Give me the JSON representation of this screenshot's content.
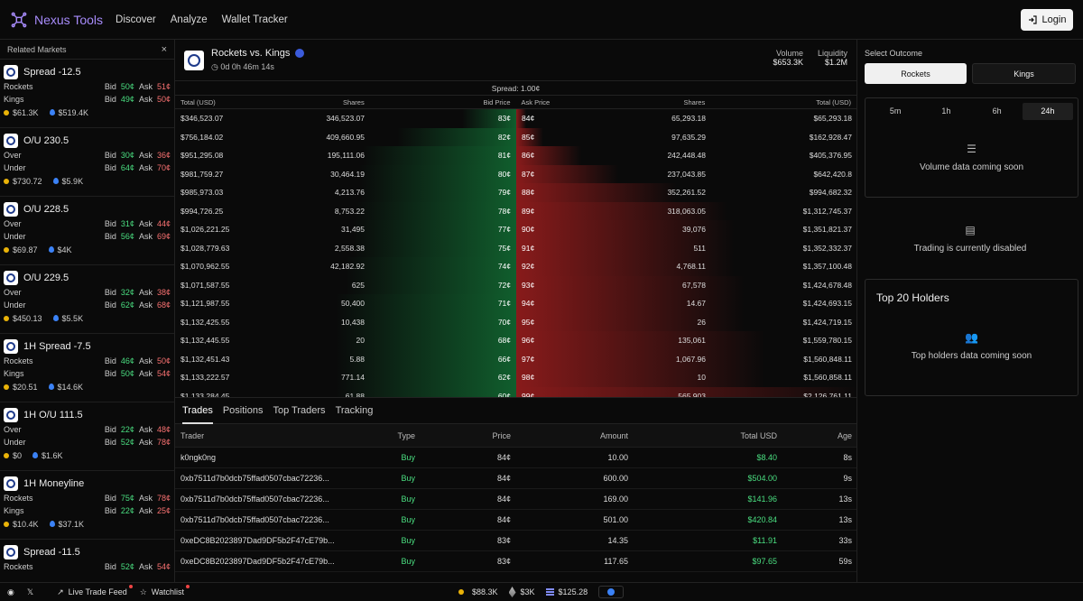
{
  "app": {
    "name": "Nexus Tools",
    "accent": "#a78bfa"
  },
  "nav": {
    "discover": "Discover",
    "analyze": "Analyze",
    "wallet": "Wallet Tracker",
    "login": "Login"
  },
  "related": {
    "title": "Related Markets",
    "markets": [
      {
        "title": "Spread -12.5",
        "a": "Rockets",
        "a_bid": "50¢",
        "a_ask": "51¢",
        "b": "Kings",
        "b_bid": "49¢",
        "b_ask": "50¢",
        "vol": "$61.3K",
        "liq": "$519.4K"
      },
      {
        "title": "O/U 230.5",
        "a": "Over",
        "a_bid": "30¢",
        "a_ask": "36¢",
        "b": "Under",
        "b_bid": "64¢",
        "b_ask": "70¢",
        "vol": "$730.72",
        "liq": "$5.9K"
      },
      {
        "title": "O/U 228.5",
        "a": "Over",
        "a_bid": "31¢",
        "a_ask": "44¢",
        "b": "Under",
        "b_bid": "56¢",
        "b_ask": "69¢",
        "vol": "$69.87",
        "liq": "$4K"
      },
      {
        "title": "O/U 229.5",
        "a": "Over",
        "a_bid": "32¢",
        "a_ask": "38¢",
        "b": "Under",
        "b_bid": "62¢",
        "b_ask": "68¢",
        "vol": "$450.13",
        "liq": "$5.5K"
      },
      {
        "title": "1H Spread -7.5",
        "a": "Rockets",
        "a_bid": "46¢",
        "a_ask": "50¢",
        "b": "Kings",
        "b_bid": "50¢",
        "b_ask": "54¢",
        "vol": "$20.51",
        "liq": "$14.6K"
      },
      {
        "title": "1H O/U 111.5",
        "a": "Over",
        "a_bid": "22¢",
        "a_ask": "48¢",
        "b": "Under",
        "b_bid": "52¢",
        "b_ask": "78¢",
        "vol": "$0",
        "liq": "$1.6K"
      },
      {
        "title": "1H Moneyline",
        "a": "Rockets",
        "a_bid": "75¢",
        "a_ask": "78¢",
        "b": "Kings",
        "b_bid": "22¢",
        "b_ask": "25¢",
        "vol": "$10.4K",
        "liq": "$37.1K"
      },
      {
        "title": "Spread -11.5",
        "a": "Rockets",
        "a_bid": "52¢",
        "a_ask": "54¢",
        "b": "",
        "b_bid": "",
        "b_ask": "",
        "vol": "",
        "liq": ""
      }
    ]
  },
  "event": {
    "title": "Rockets vs. Kings",
    "timer": "0d 0h 46m 14s",
    "volume_label": "Volume",
    "volume": "$653.3K",
    "liquidity_label": "Liquidity",
    "liquidity": "$1.2M"
  },
  "orderbook": {
    "spread": "Spread: 1.00¢",
    "headers": {
      "total": "Total (USD)",
      "shares": "Shares",
      "bid": "Bid Price",
      "ask": "Ask Price",
      "shares2": "Shares",
      "total2": "Total (USD)"
    },
    "rows": [
      {
        "bt": "$346,523.07",
        "bs": "346,523.07",
        "bp": "83¢",
        "ap": "84¢",
        "as": "65,293.18",
        "at": "$65,293.18",
        "bd": 0.16,
        "ad": 0.03
      },
      {
        "bt": "$756,184.02",
        "bs": "409,660.95",
        "bp": "82¢",
        "ap": "85¢",
        "as": "97,635.29",
        "at": "$162,928.47",
        "bd": 0.35,
        "ad": 0.08
      },
      {
        "bt": "$951,295.08",
        "bs": "195,111.06",
        "bp": "81¢",
        "ap": "86¢",
        "as": "242,448.48",
        "at": "$405,376.95",
        "bd": 0.45,
        "ad": 0.19
      },
      {
        "bt": "$981,759.27",
        "bs": "30,464.19",
        "bp": "80¢",
        "ap": "87¢",
        "as": "237,043.85",
        "at": "$642,420.8",
        "bd": 0.46,
        "ad": 0.3
      },
      {
        "bt": "$985,973.03",
        "bs": "4,213.76",
        "bp": "79¢",
        "ap": "88¢",
        "as": "352,261.52",
        "at": "$994,682.32",
        "bd": 0.46,
        "ad": 0.47
      },
      {
        "bt": "$994,726.25",
        "bs": "8,753.22",
        "bp": "78¢",
        "ap": "89¢",
        "as": "318,063.05",
        "at": "$1,312,745.37",
        "bd": 0.47,
        "ad": 0.62
      },
      {
        "bt": "$1,026,221.25",
        "bs": "31,495",
        "bp": "77¢",
        "ap": "90¢",
        "as": "39,076",
        "at": "$1,351,821.37",
        "bd": 0.48,
        "ad": 0.64
      },
      {
        "bt": "$1,028,779.63",
        "bs": "2,558.38",
        "bp": "75¢",
        "ap": "91¢",
        "as": "511",
        "at": "$1,352,332.37",
        "bd": 0.48,
        "ad": 0.64
      },
      {
        "bt": "$1,070,962.55",
        "bs": "42,182.92",
        "bp": "74¢",
        "ap": "92¢",
        "as": "4,768.11",
        "at": "$1,357,100.48",
        "bd": 0.5,
        "ad": 0.64
      },
      {
        "bt": "$1,071,587.55",
        "bs": "625",
        "bp": "72¢",
        "ap": "93¢",
        "as": "67,578",
        "at": "$1,424,678.48",
        "bd": 0.5,
        "ad": 0.67
      },
      {
        "bt": "$1,121,987.55",
        "bs": "50,400",
        "bp": "71¢",
        "ap": "94¢",
        "as": "14.67",
        "at": "$1,424,693.15",
        "bd": 0.53,
        "ad": 0.67
      },
      {
        "bt": "$1,132,425.55",
        "bs": "10,438",
        "bp": "70¢",
        "ap": "95¢",
        "as": "26",
        "at": "$1,424,719.15",
        "bd": 0.53,
        "ad": 0.67
      },
      {
        "bt": "$1,132,445.55",
        "bs": "20",
        "bp": "68¢",
        "ap": "96¢",
        "as": "135,061",
        "at": "$1,559,780.15",
        "bd": 0.53,
        "ad": 0.73
      },
      {
        "bt": "$1,132,451.43",
        "bs": "5.88",
        "bp": "66¢",
        "ap": "97¢",
        "as": "1,067.96",
        "at": "$1,560,848.11",
        "bd": 0.53,
        "ad": 0.73
      },
      {
        "bt": "$1,133,222.57",
        "bs": "771.14",
        "bp": "62¢",
        "ap": "98¢",
        "as": "10",
        "at": "$1,560,858.11",
        "bd": 0.53,
        "ad": 0.73
      },
      {
        "bt": "$1,133,284.45",
        "bs": "61.88",
        "bp": "60¢",
        "ap": "99¢",
        "as": "565,903",
        "at": "$2,126,761.11",
        "bd": 0.53,
        "ad": 1.0
      }
    ]
  },
  "tabs": [
    "Trades",
    "Positions",
    "Top Traders",
    "Tracking"
  ],
  "trades": {
    "headers": [
      "Trader",
      "Type",
      "Price",
      "Amount",
      "Total USD",
      "Age"
    ],
    "rows": [
      [
        "k0ngk0ng",
        "Buy",
        "84¢",
        "10.00",
        "$8.40",
        "8s"
      ],
      [
        "0xb7511d7b0dcb75ffad0507cbac72236...",
        "Buy",
        "84¢",
        "600.00",
        "$504.00",
        "9s"
      ],
      [
        "0xb7511d7b0dcb75ffad0507cbac72236...",
        "Buy",
        "84¢",
        "169.00",
        "$141.96",
        "13s"
      ],
      [
        "0xb7511d7b0dcb75ffad0507cbac72236...",
        "Buy",
        "84¢",
        "501.00",
        "$420.84",
        "13s"
      ],
      [
        "0xeDC8B2023897Dad9DF5b2F47cE79b...",
        "Buy",
        "83¢",
        "14.35",
        "$11.91",
        "33s"
      ],
      [
        "0xeDC8B2023897Dad9DF5b2F47cE79b...",
        "Buy",
        "83¢",
        "117.65",
        "$97.65",
        "59s"
      ]
    ]
  },
  "outcome": {
    "label": "Select Outcome",
    "a": "Rockets",
    "b": "Kings"
  },
  "timeframes": [
    "5m",
    "1h",
    "6h",
    "24h"
  ],
  "volume_msg": "Volume data coming soon",
  "trading_msg": "Trading is currently disabled",
  "holders": {
    "title": "Top 20 Holders",
    "msg": "Top holders data coming soon"
  },
  "footer": {
    "trade_feed": "Live Trade Feed",
    "watchlist": "Watchlist",
    "coin1": "$88.3K",
    "coin2": "$3K",
    "coin3": "$125.28"
  }
}
